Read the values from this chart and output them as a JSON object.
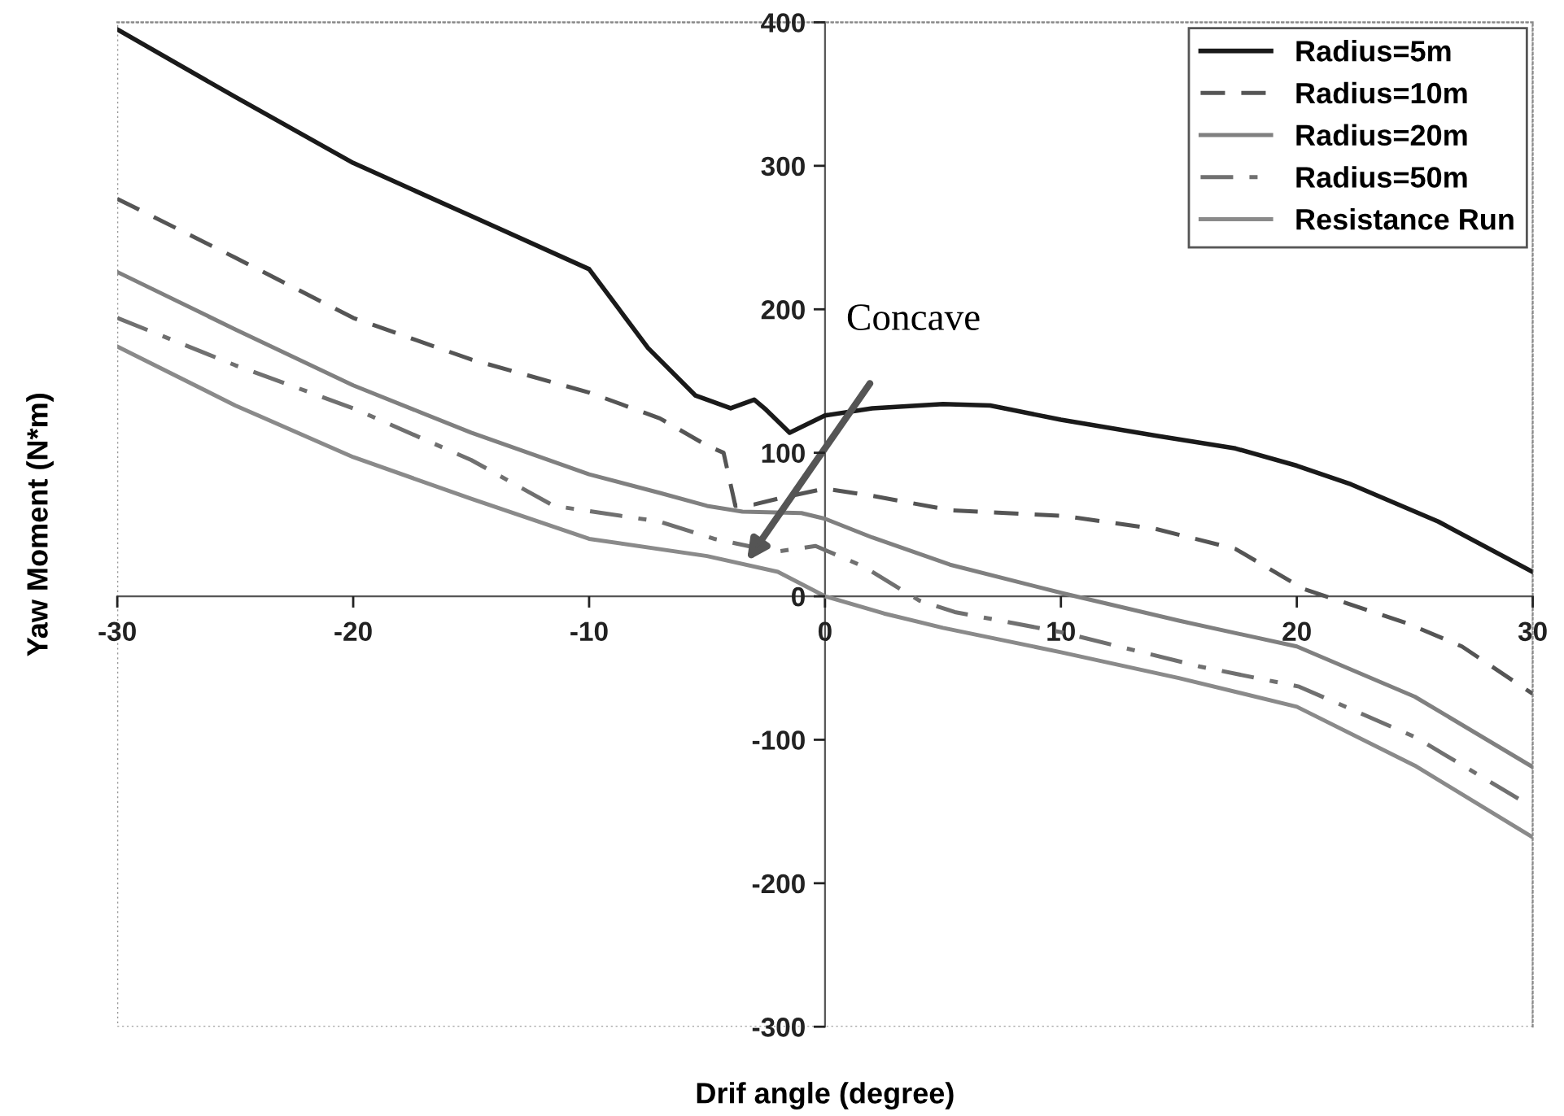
{
  "chart_data": {
    "type": "line",
    "xlabel": "Drif angle (degree)",
    "ylabel": "Yaw Moment (N*m)",
    "xlim": [
      -30,
      30
    ],
    "ylim": [
      -300,
      400
    ],
    "xticks": [
      -30,
      -20,
      -10,
      0,
      10,
      20,
      30
    ],
    "yticks": [
      -300,
      -200,
      -100,
      0,
      100,
      200,
      300,
      400
    ],
    "grid": false,
    "legend": "top right",
    "marker": "none",
    "annotations": [
      "Concave"
    ],
    "series": [
      {
        "name": "Radius=5m",
        "color": "#1a1a1a",
        "line_style": "solid",
        "x": [
          -30,
          -25,
          -20,
          -15,
          -10,
          -7.5,
          -5.5,
          -4,
          -3,
          -2.5,
          -1.5,
          0,
          2,
          5,
          7,
          10,
          14,
          17.4,
          20,
          22.3,
          26,
          30
        ],
        "values": [
          395,
          348,
          302,
          265,
          228,
          173,
          140,
          131,
          137,
          130,
          114,
          126,
          131,
          134,
          133,
          123,
          112,
          103,
          91,
          78,
          52,
          17
        ]
      },
      {
        "name": "Radius=10m",
        "color": "#555555",
        "line_style": "dashed",
        "x": [
          -30,
          -25,
          -20,
          -15,
          -10,
          -7,
          -5,
          -4.3,
          -3.8,
          -3,
          -2,
          0,
          2,
          5.3,
          10.1,
          14,
          17.4,
          20.3,
          24.7,
          27,
          30
        ],
        "values": [
          277,
          236,
          194,
          165,
          142,
          124,
          105,
          100,
          63,
          64,
          68,
          75,
          70,
          60,
          56,
          47,
          33,
          5,
          -19,
          -35,
          -68
        ]
      },
      {
        "name": "Radius=20m",
        "color": "#808080",
        "line_style": "solid",
        "x": [
          -30,
          -25,
          -20,
          -15,
          -10,
          -7,
          -5,
          -3.5,
          -1,
          0,
          2,
          5.3,
          10.1,
          15,
          20,
          25,
          30
        ],
        "values": [
          226,
          186,
          147,
          114,
          85,
          72,
          63,
          59,
          58,
          54,
          41,
          22,
          2,
          -17,
          -35,
          -70,
          -119
        ]
      },
      {
        "name": "Radius=50m",
        "color": "#707070",
        "line_style": "dashdot",
        "x": [
          -30,
          -25,
          -20,
          -15,
          -11.5,
          -7,
          -4.7,
          -2.1,
          -0.4,
          1.6,
          4,
          5.5,
          10,
          15.9,
          20.1,
          25,
          30
        ],
        "values": [
          194,
          161,
          131,
          95,
          63,
          52,
          40,
          31,
          35,
          21,
          -3,
          -11,
          -25,
          -49,
          -63,
          -98,
          -147
        ]
      },
      {
        "name": "Resistance Run",
        "color": "#8a8a8a",
        "line_style": "solid",
        "x": [
          -30,
          -25,
          -20,
          -15,
          -10,
          -5,
          -2,
          0,
          2.5,
          5,
          10,
          15,
          20,
          25,
          30
        ],
        "values": [
          174,
          133,
          97,
          68,
          40,
          28,
          17,
          0,
          -12,
          -22,
          -39,
          -57,
          -77,
          -118,
          -168
        ]
      }
    ]
  }
}
